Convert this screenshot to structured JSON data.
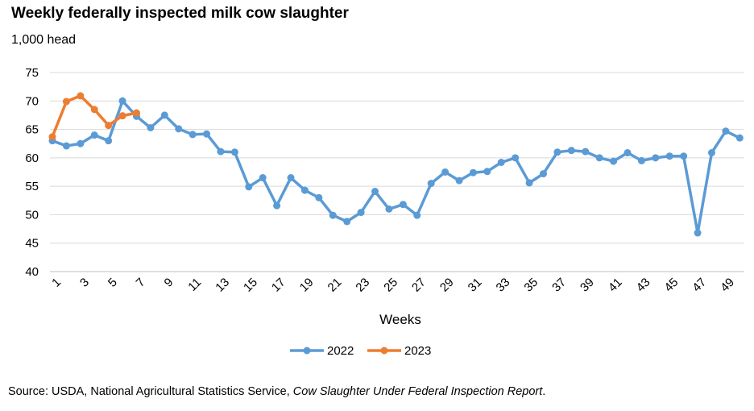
{
  "header": {
    "title": "Weekly federally inspected milk cow slaughter",
    "unit": "1,000 head"
  },
  "footer": {
    "source_prefix": "Source: USDA, National Agricultural Statistics Service, ",
    "source_italic": "Cow Slaughter Under Federal Inspection Report",
    "source_suffix": "."
  },
  "chart_data": {
    "type": "line",
    "title": "Weekly federally inspected milk cow slaughter",
    "ylabel": "1,000 head",
    "xlabel": "Weeks",
    "ylim": [
      40,
      75
    ],
    "yticks": [
      40,
      45,
      50,
      55,
      60,
      65,
      70,
      75
    ],
    "xlim": [
      1,
      50
    ],
    "xticks": [
      1,
      3,
      5,
      7,
      9,
      11,
      13,
      15,
      17,
      19,
      21,
      23,
      25,
      27,
      29,
      31,
      33,
      35,
      37,
      39,
      41,
      43,
      45,
      47,
      49
    ],
    "grid": true,
    "legend": "bottom-center",
    "series": [
      {
        "name": "2022",
        "color": "#5b9bd5",
        "x": [
          1,
          2,
          3,
          4,
          5,
          6,
          7,
          8,
          9,
          10,
          11,
          12,
          13,
          14,
          15,
          16,
          17,
          18,
          19,
          20,
          21,
          22,
          23,
          24,
          25,
          26,
          27,
          28,
          29,
          30,
          31,
          32,
          33,
          34,
          35,
          36,
          37,
          38,
          39,
          40,
          41,
          42,
          43,
          44,
          45,
          46,
          47,
          48,
          49,
          50
        ],
        "values": [
          63.0,
          62.1,
          62.5,
          64.0,
          63.0,
          70.0,
          67.3,
          65.3,
          67.5,
          65.1,
          64.1,
          64.2,
          61.1,
          61.0,
          54.9,
          56.5,
          51.6,
          56.5,
          54.3,
          53.0,
          49.9,
          48.8,
          50.4,
          54.1,
          51.0,
          51.8,
          49.9,
          55.5,
          57.5,
          56.0,
          57.4,
          57.6,
          59.2,
          60.0,
          55.6,
          57.2,
          61.0,
          61.3,
          61.1,
          60.0,
          59.4,
          60.9,
          59.5,
          60.0,
          60.3,
          60.3,
          46.8,
          60.9,
          64.7,
          63.5
        ]
      },
      {
        "name": "2023",
        "color": "#ed7d31",
        "x": [
          1,
          2,
          3,
          4,
          5,
          6,
          7
        ],
        "values": [
          63.7,
          69.9,
          70.9,
          68.5,
          65.7,
          67.4,
          67.9
        ]
      }
    ]
  }
}
